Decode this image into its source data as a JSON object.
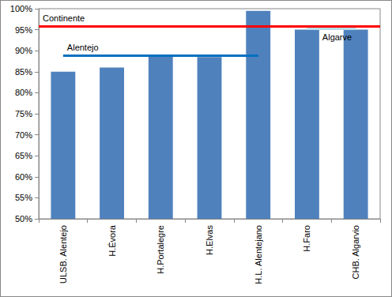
{
  "chart_data": {
    "type": "bar",
    "categories": [
      "ULSB. Alentejo",
      "H.Évora",
      "H.Portalegre",
      "H.Elvas",
      "H.L. Alentejano",
      "H.Faro",
      "CHB. Algarvio"
    ],
    "values": [
      85,
      86,
      89,
      88.5,
      99.5,
      95,
      95
    ],
    "color": "#4f81bd",
    "ylim": [
      50,
      100
    ],
    "yticks": [
      {
        "value": 50,
        "label": "50%"
      },
      {
        "value": 55,
        "label": "55%"
      },
      {
        "value": 60,
        "label": "60%"
      },
      {
        "value": 65,
        "label": "65%"
      },
      {
        "value": 70,
        "label": "70%"
      },
      {
        "value": 75,
        "label": "75%"
      },
      {
        "value": 80,
        "label": "80%"
      },
      {
        "value": 85,
        "label": "85%"
      },
      {
        "value": 90,
        "label": "90%"
      },
      {
        "value": 95,
        "label": "95%"
      },
      {
        "value": 100,
        "label": "100%"
      }
    ],
    "grid": false,
    "reference_lines": [
      {
        "label": "Continente",
        "value": 95.8,
        "color": "#ff0000"
      },
      {
        "label": "Alentejo",
        "value": 88.8,
        "color": "#0070c0",
        "categories": [
          "ULSB. Alentejo",
          "H.L. Alentejano"
        ]
      },
      {
        "label": "Algarve",
        "value": 95.3,
        "color": "#b7dee8",
        "categories": [
          "H.Faro",
          "CHB. Algarvio"
        ]
      }
    ]
  }
}
